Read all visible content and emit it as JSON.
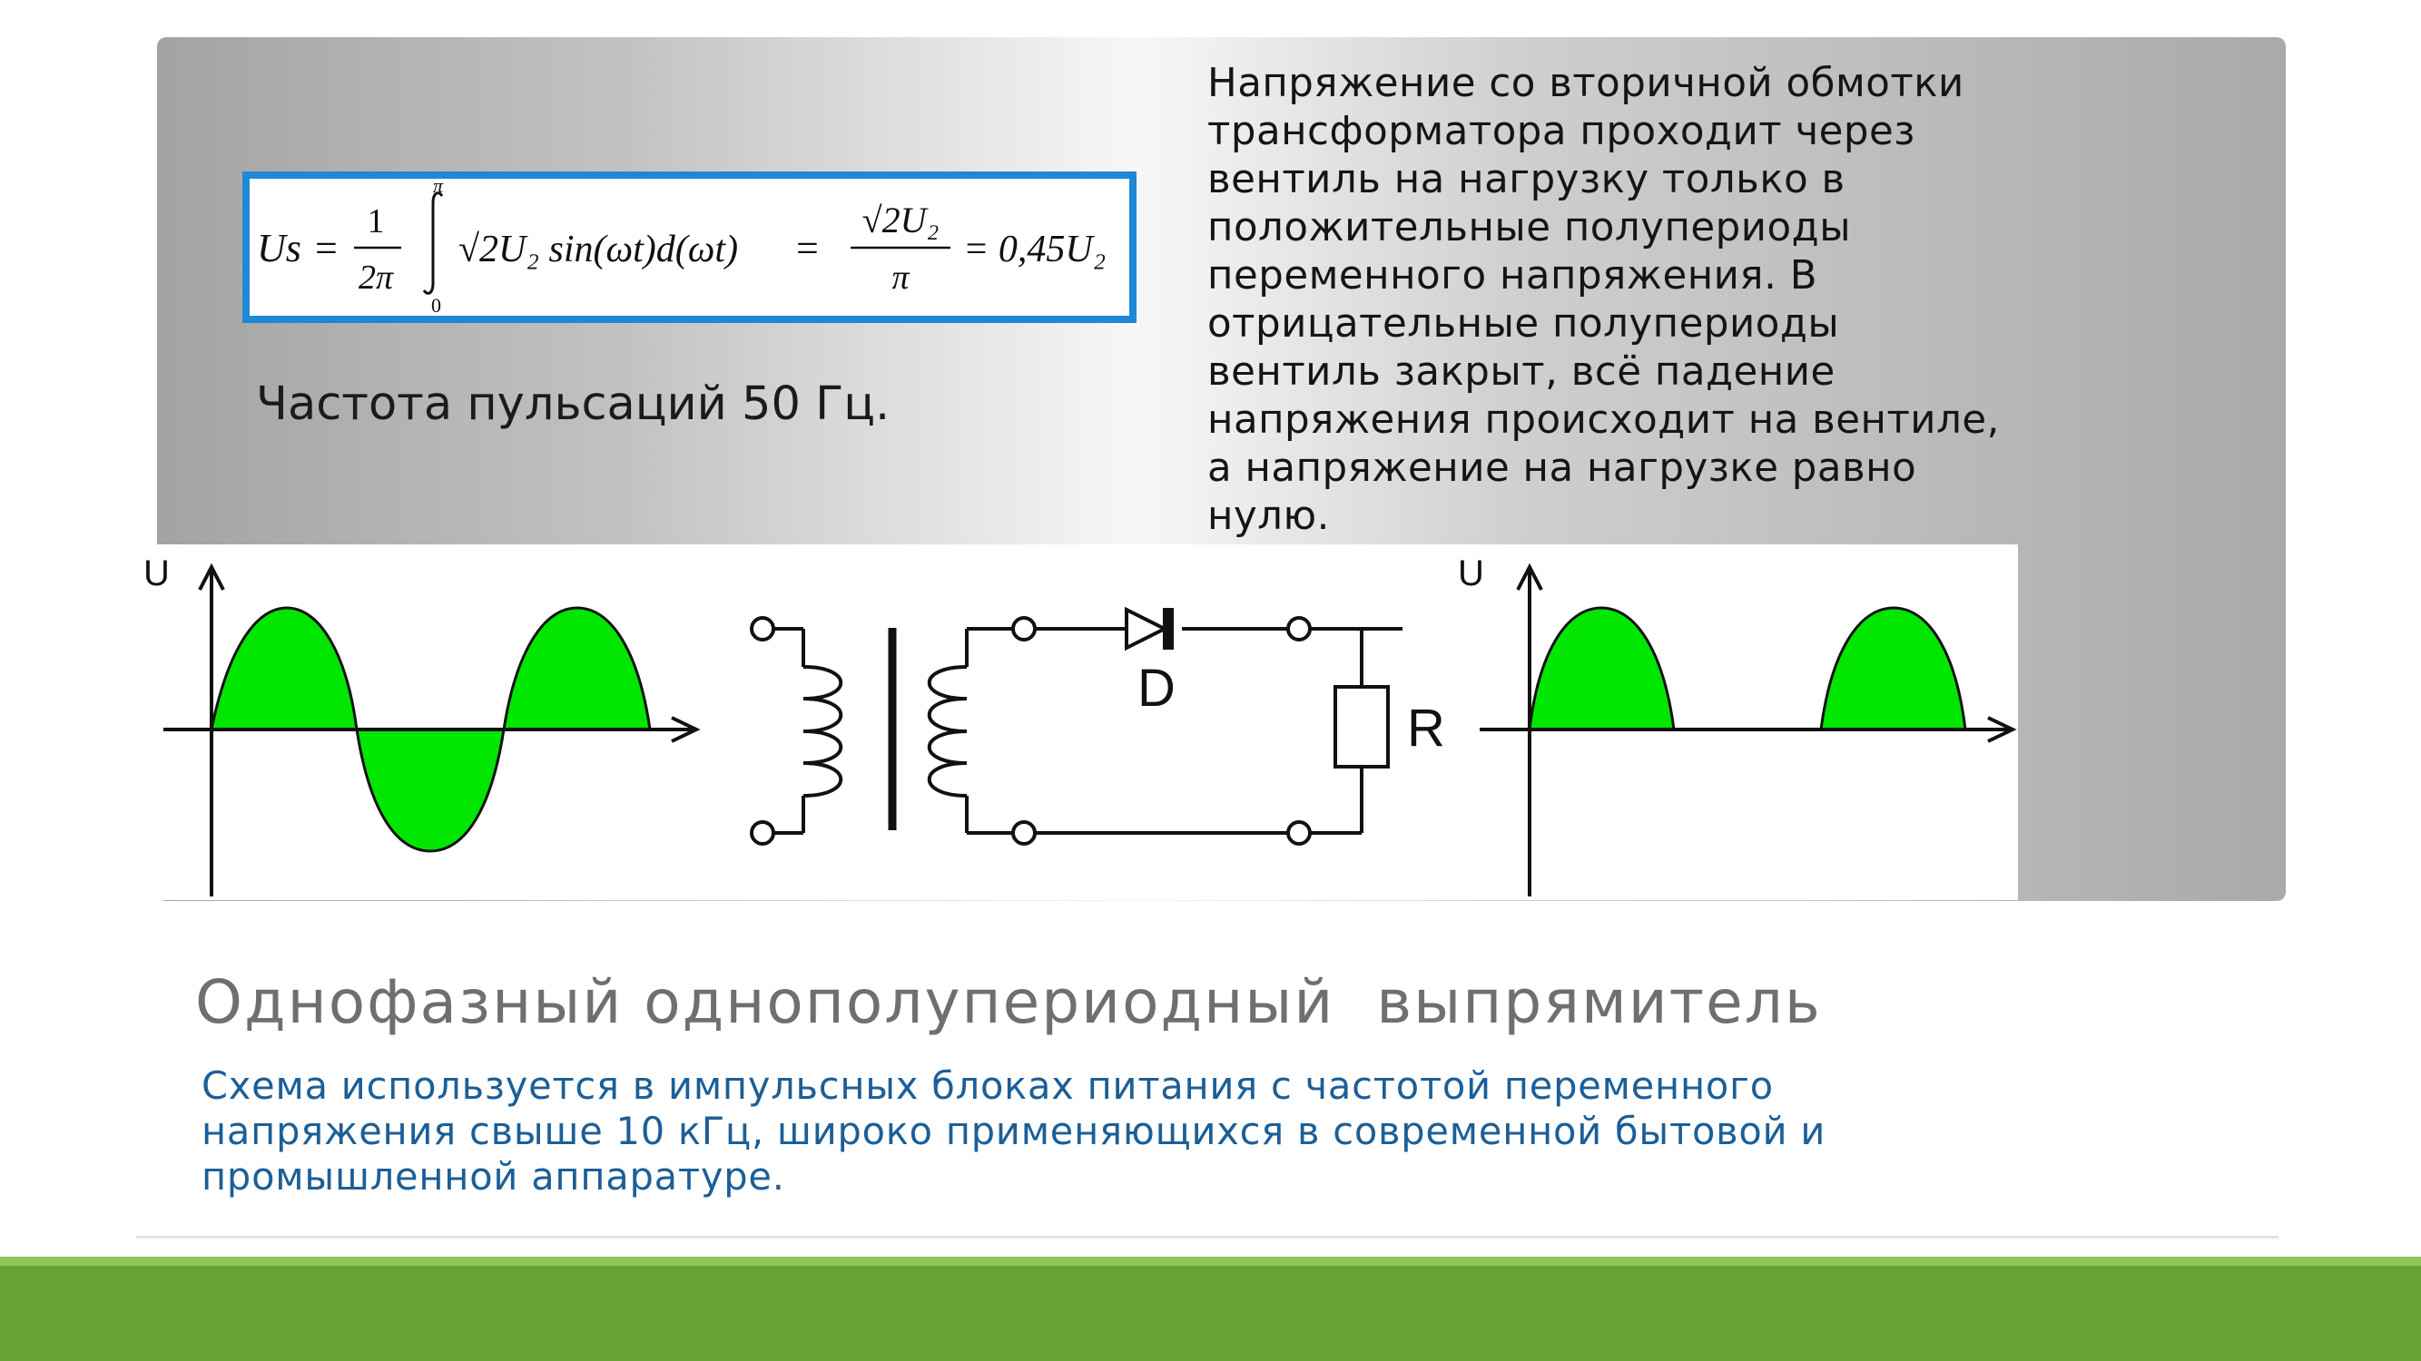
{
  "slide": {
    "formula": {
      "lhs": "Us",
      "eq": "=",
      "frac_num": "1",
      "frac_den": "2π",
      "int_upper": "π",
      "int_lower": "0",
      "integrand": "√2U₂ sin(ωt)d(ωt)",
      "eq2": "=",
      "frac2_num": "√2U₂",
      "frac2_den": "π",
      "result": "= 0,45U₂"
    },
    "frequency_text": "Частота пульсаций 50 Гц.",
    "description": "Напряжение со вторичной обмотки\nтрансформатора проходит через\nвентиль на нагрузку только в\nположительные полупериоды\nпеременного напряжения. В\nотрицательные полупериоды\nвентиль закрыт, всё падение\nнапряжения происходит на вентиле,\nа напряжение на нагрузке  равно\nнулю.",
    "title": "Однофазный однополупериодный  выпрямитель",
    "note": "Схема используется в импульсных блоках питания с частотой переменного\nнапряжения свыше 10 кГц, широко применяющихся в современной бытовой и\nпромышленной аппаратуре."
  },
  "diagram": {
    "input_axis_label": "U",
    "output_axis_label": "U",
    "diode_label": "D",
    "resistor_label": "R"
  },
  "colors": {
    "wave_fill": "#00e600",
    "formula_border": "#1e88d6",
    "title": "#6f6f6f",
    "note": "#1c5f97",
    "footer": "#66a334"
  }
}
